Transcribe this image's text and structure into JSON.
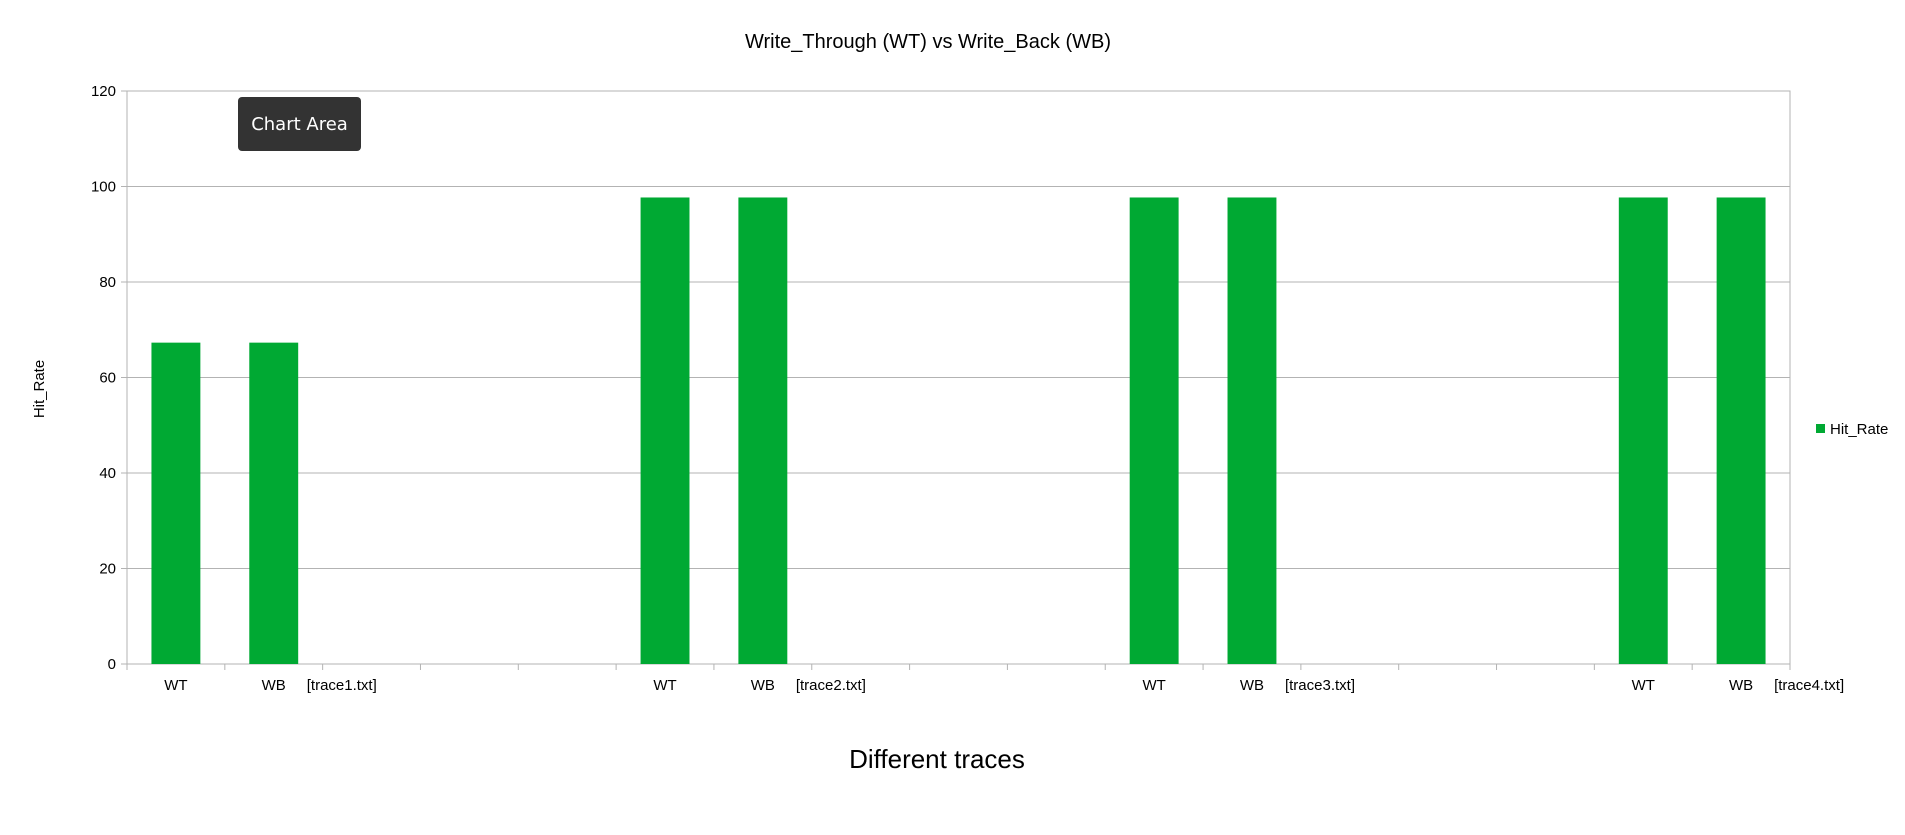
{
  "chart_data": {
    "type": "bar",
    "title": "Write_Through  (WT) vs Write_Back  (WB)",
    "xlabel": "Different traces",
    "ylabel": "Hit_Rate",
    "ylim": [
      0,
      120
    ],
    "yticks": [
      "0",
      "20",
      "40",
      "60",
      "80",
      "100",
      "120"
    ],
    "grid": true,
    "legend_position": "right",
    "groups": [
      {
        "label": "[trace1.txt]",
        "categories": [
          "WT",
          "WB"
        ],
        "values": [
          67.3,
          67.3
        ]
      },
      {
        "label": "[trace2.txt]",
        "categories": [
          "WT",
          "WB"
        ],
        "values": [
          97.7,
          97.7
        ]
      },
      {
        "label": "[trace3.txt]",
        "categories": [
          "WT",
          "WB"
        ],
        "values": [
          97.7,
          97.7
        ]
      },
      {
        "label": "[trace4.txt]",
        "categories": [
          "WT",
          "WB"
        ],
        "values": [
          97.7,
          97.7
        ]
      }
    ],
    "series": [
      {
        "name": "Hit_Rate",
        "color": "#00a933"
      }
    ]
  },
  "tooltip": {
    "text": "Chart Area"
  }
}
